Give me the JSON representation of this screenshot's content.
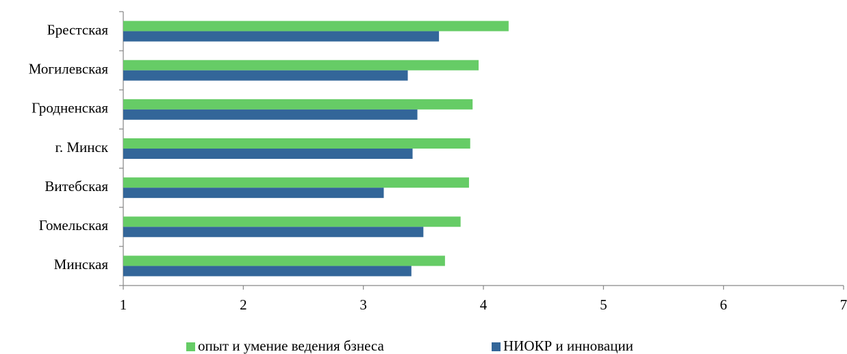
{
  "chart_data": {
    "type": "bar",
    "orientation": "horizontal",
    "categories": [
      "Брестская",
      "Могилевская",
      "Гродненская",
      "г. Минск",
      "Витебская",
      "Гомельская",
      "Минская"
    ],
    "series": [
      {
        "name": "опыт и умение ведения бзнеса",
        "color": "#66cc66",
        "values": [
          4.21,
          3.96,
          3.91,
          3.89,
          3.88,
          3.81,
          3.68
        ]
      },
      {
        "name": "НИОКР и инновации",
        "color": "#336699",
        "values": [
          3.63,
          3.37,
          3.45,
          3.41,
          3.17,
          3.5,
          3.4
        ]
      }
    ],
    "xlim": [
      1,
      7
    ],
    "xticks": [
      1,
      2,
      3,
      4,
      5,
      6,
      7
    ],
    "legend": "bottom"
  }
}
